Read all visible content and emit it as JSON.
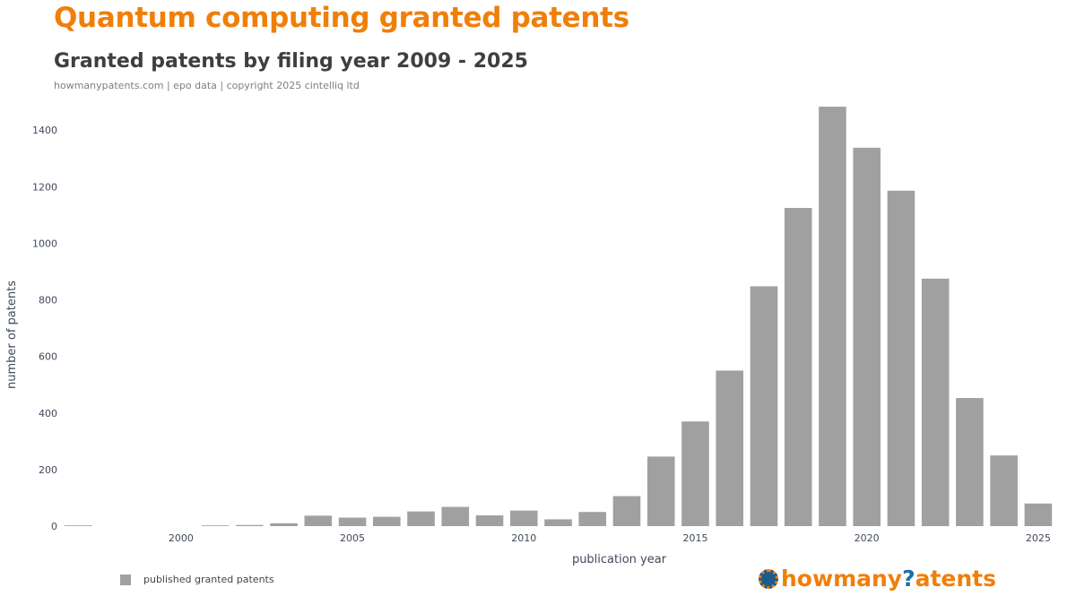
{
  "header": {
    "title": "Quantum computing granted patents",
    "subtitle": "Granted patents by filing year 2009 - 2025",
    "source": "howmanypatents.com | epo data | copyright 2025 cintelliq ltd"
  },
  "legend": {
    "label": "published granted patents"
  },
  "brand": {
    "part1": "howmany",
    "part2": "?",
    "part3": "atents",
    "icon": "globe-icon"
  },
  "colors": {
    "bar": "#a0a0a0",
    "title": "#f07f09",
    "axis_text": "#3f4a5a"
  },
  "chart_data": {
    "type": "bar",
    "title": "Granted patents by filing year 2009 - 2025",
    "xlabel": "publication year",
    "ylabel": "number of patents",
    "x_ticks": [
      2000,
      2005,
      2010,
      2015,
      2020,
      2025
    ],
    "y_ticks": [
      0,
      200,
      400,
      600,
      800,
      1000,
      1200,
      1400
    ],
    "xlim": [
      1996.5,
      2025.5
    ],
    "ylim": [
      0,
      1480
    ],
    "grid": false,
    "legend_position": "bottom-left",
    "series": [
      {
        "name": "published granted patents",
        "x": [
          1997,
          2001,
          2002,
          2003,
          2004,
          2005,
          2006,
          2007,
          2008,
          2009,
          2010,
          2011,
          2012,
          2013,
          2014,
          2015,
          2016,
          2017,
          2018,
          2019,
          2020,
          2021,
          2022,
          2023,
          2024,
          2025
        ],
        "values": [
          1,
          2,
          4,
          10,
          37,
          30,
          33,
          52,
          68,
          38,
          55,
          24,
          50,
          106,
          246,
          370,
          550,
          848,
          1125,
          1483,
          1338,
          1186,
          875,
          453,
          250,
          80
        ]
      }
    ]
  }
}
